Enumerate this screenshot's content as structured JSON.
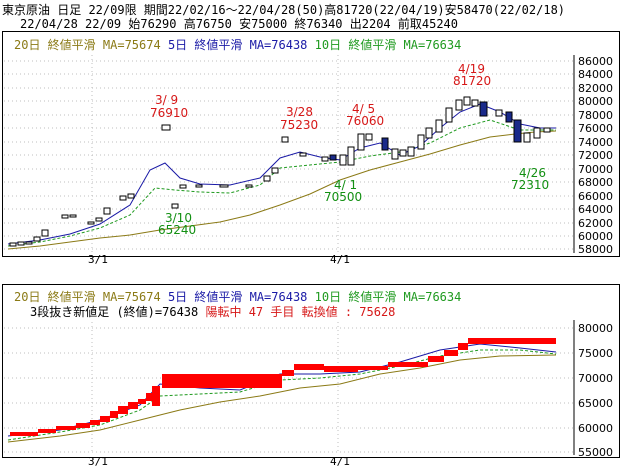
{
  "header": {
    "line1": "東京原油 日足 22/09限 期間22/02/16～22/04/28(50)高81720(22/04/19)安58470(22/02/18)",
    "line2": "22/04/28 22/09 始76290 高76750 安75000 終76340 出2204 前取45240"
  },
  "top_panel": {
    "legend": {
      "ma20": "20日 終値平滑 MA=75674",
      "ma5": "5日 終値平滑 MA=76438",
      "ma10": "10日 終値平滑 MA=76634"
    },
    "y_ticks": [
      "86000",
      "84000",
      "82000",
      "80000",
      "78000",
      "76000",
      "74000",
      "72000",
      "70000",
      "68000",
      "66000",
      "64000",
      "62000",
      "60000",
      "58000"
    ],
    "x_ticks": [
      "3/1",
      "4/1"
    ],
    "annotations": [
      {
        "date": "3/9",
        "value": "76910",
        "color": "red"
      },
      {
        "date": "3/10",
        "value": "65240",
        "color": "green"
      },
      {
        "date": "3/28",
        "value": "75230",
        "color": "red"
      },
      {
        "date": "4/1",
        "value": "70500",
        "color": "green"
      },
      {
        "date": "4/5",
        "value": "76060",
        "color": "red"
      },
      {
        "date": "4/19",
        "value": "81720",
        "color": "red"
      },
      {
        "date": "4/26",
        "value": "72310",
        "color": "green"
      }
    ]
  },
  "bottom_panel": {
    "legend": {
      "ma20": "20日 終値平滑 MA=75674",
      "ma5": "5日 終値平滑 MA=76438",
      "ma10": "10日 終値平滑 MA=76634"
    },
    "info_prefix": "3段抜き新値足 (終値)=76438",
    "info_status": "陽転中 47 手目 転換値 : 75628",
    "y_ticks": [
      "80000",
      "75000",
      "70000",
      "65000",
      "60000",
      "55000"
    ],
    "x_ticks": [
      "3/1",
      "4/1"
    ]
  },
  "colors": {
    "up_candle": "#ffffff",
    "down_candle": "#1a2a8a",
    "ma5": "#1a1aa6",
    "ma10": "#1f9a1f",
    "ma20": "#8b7a16",
    "annot_red": "#d61818",
    "annot_green": "#139013",
    "breakout_block": "#ff0000"
  }
}
